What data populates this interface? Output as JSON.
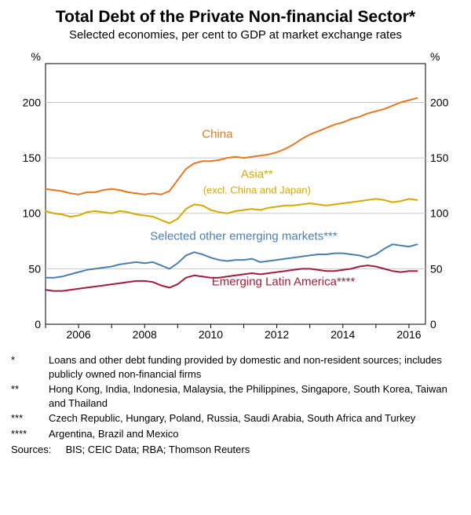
{
  "title": "Total Debt of the Private Non-financial Sector*",
  "subtitle": "Selected economies, per cent to GDP at market exchange rates",
  "chart": {
    "type": "line",
    "background_color": "#ffffff",
    "grid_color": "#c9c9c9",
    "axis_color": "#000000",
    "font_family": "Arial",
    "axis_fontsize": 14,
    "ylabel_left": "%",
    "ylabel_right": "%",
    "ylim": [
      0,
      235
    ],
    "yticks": [
      0,
      50,
      100,
      150,
      200
    ],
    "xlim": [
      2005,
      2016.5
    ],
    "xticks": [
      2006,
      2008,
      2010,
      2012,
      2014,
      2016
    ],
    "series": [
      {
        "name": "China",
        "label": "China",
        "color": "#e87722",
        "width": 2,
        "label_color": "#e87722",
        "label_x": 2010.2,
        "label_y": 168,
        "label_fontsize": 15,
        "points": [
          [
            2005.0,
            122
          ],
          [
            2005.25,
            121
          ],
          [
            2005.5,
            120
          ],
          [
            2005.75,
            118
          ],
          [
            2006.0,
            117
          ],
          [
            2006.25,
            119
          ],
          [
            2006.5,
            119
          ],
          [
            2006.75,
            121
          ],
          [
            2007.0,
            122
          ],
          [
            2007.25,
            121
          ],
          [
            2007.5,
            119
          ],
          [
            2007.75,
            118
          ],
          [
            2008.0,
            117
          ],
          [
            2008.25,
            118
          ],
          [
            2008.5,
            117
          ],
          [
            2008.75,
            120
          ],
          [
            2009.0,
            130
          ],
          [
            2009.25,
            140
          ],
          [
            2009.5,
            145
          ],
          [
            2009.75,
            147
          ],
          [
            2010.0,
            147
          ],
          [
            2010.25,
            148
          ],
          [
            2010.5,
            150
          ],
          [
            2010.75,
            151
          ],
          [
            2011.0,
            150
          ],
          [
            2011.25,
            151
          ],
          [
            2011.5,
            152
          ],
          [
            2011.75,
            153
          ],
          [
            2012.0,
            155
          ],
          [
            2012.25,
            158
          ],
          [
            2012.5,
            162
          ],
          [
            2012.75,
            167
          ],
          [
            2013.0,
            171
          ],
          [
            2013.25,
            174
          ],
          [
            2013.5,
            177
          ],
          [
            2013.75,
            180
          ],
          [
            2014.0,
            182
          ],
          [
            2014.25,
            185
          ],
          [
            2014.5,
            187
          ],
          [
            2014.75,
            190
          ],
          [
            2015.0,
            192
          ],
          [
            2015.25,
            194
          ],
          [
            2015.5,
            197
          ],
          [
            2015.75,
            200
          ],
          [
            2016.0,
            202
          ],
          [
            2016.25,
            204
          ]
        ]
      },
      {
        "name": "Asia (excl. China and Japan)",
        "label": "Asia**",
        "label2": "(excl. China and Japan)",
        "color": "#d6a900",
        "width": 2,
        "label_color": "#d6a900",
        "label_x": 2011.4,
        "label_y": 132,
        "label2_x": 2011.4,
        "label2_y": 118,
        "label_fontsize": 15,
        "label2_fontsize": 13,
        "points": [
          [
            2005.0,
            102
          ],
          [
            2005.25,
            100
          ],
          [
            2005.5,
            99
          ],
          [
            2005.75,
            97
          ],
          [
            2006.0,
            98
          ],
          [
            2006.25,
            101
          ],
          [
            2006.5,
            102
          ],
          [
            2006.75,
            101
          ],
          [
            2007.0,
            100
          ],
          [
            2007.25,
            102
          ],
          [
            2007.5,
            101
          ],
          [
            2007.75,
            99
          ],
          [
            2008.0,
            98
          ],
          [
            2008.25,
            97
          ],
          [
            2008.5,
            94
          ],
          [
            2008.75,
            91
          ],
          [
            2009.0,
            95
          ],
          [
            2009.25,
            104
          ],
          [
            2009.5,
            108
          ],
          [
            2009.75,
            107
          ],
          [
            2010.0,
            103
          ],
          [
            2010.25,
            101
          ],
          [
            2010.5,
            100
          ],
          [
            2010.75,
            102
          ],
          [
            2011.0,
            103
          ],
          [
            2011.25,
            104
          ],
          [
            2011.5,
            103
          ],
          [
            2011.75,
            105
          ],
          [
            2012.0,
            106
          ],
          [
            2012.25,
            107
          ],
          [
            2012.5,
            107
          ],
          [
            2012.75,
            108
          ],
          [
            2013.0,
            109
          ],
          [
            2013.25,
            108
          ],
          [
            2013.5,
            107
          ],
          [
            2013.75,
            108
          ],
          [
            2014.0,
            109
          ],
          [
            2014.25,
            110
          ],
          [
            2014.5,
            111
          ],
          [
            2014.75,
            112
          ],
          [
            2015.0,
            113
          ],
          [
            2015.25,
            112
          ],
          [
            2015.5,
            110
          ],
          [
            2015.75,
            111
          ],
          [
            2016.0,
            113
          ],
          [
            2016.25,
            112
          ]
        ]
      },
      {
        "name": "Selected other emerging markets",
        "label": "Selected other emerging markets***",
        "color": "#4a7fb0",
        "width": 2,
        "label_color": "#4a7fb0",
        "label_x": 2011.0,
        "label_y": 76,
        "label_fontsize": 15,
        "points": [
          [
            2005.0,
            42
          ],
          [
            2005.25,
            42
          ],
          [
            2005.5,
            43
          ],
          [
            2005.75,
            45
          ],
          [
            2006.0,
            47
          ],
          [
            2006.25,
            49
          ],
          [
            2006.5,
            50
          ],
          [
            2006.75,
            51
          ],
          [
            2007.0,
            52
          ],
          [
            2007.25,
            54
          ],
          [
            2007.5,
            55
          ],
          [
            2007.75,
            56
          ],
          [
            2008.0,
            55
          ],
          [
            2008.25,
            56
          ],
          [
            2008.5,
            53
          ],
          [
            2008.75,
            50
          ],
          [
            2009.0,
            55
          ],
          [
            2009.25,
            62
          ],
          [
            2009.5,
            65
          ],
          [
            2009.75,
            63
          ],
          [
            2010.0,
            60
          ],
          [
            2010.25,
            58
          ],
          [
            2010.5,
            57
          ],
          [
            2010.75,
            58
          ],
          [
            2011.0,
            58
          ],
          [
            2011.25,
            59
          ],
          [
            2011.5,
            56
          ],
          [
            2011.75,
            57
          ],
          [
            2012.0,
            58
          ],
          [
            2012.25,
            59
          ],
          [
            2012.5,
            60
          ],
          [
            2012.75,
            61
          ],
          [
            2013.0,
            62
          ],
          [
            2013.25,
            63
          ],
          [
            2013.5,
            63
          ],
          [
            2013.75,
            64
          ],
          [
            2014.0,
            64
          ],
          [
            2014.25,
            63
          ],
          [
            2014.5,
            62
          ],
          [
            2014.75,
            60
          ],
          [
            2015.0,
            63
          ],
          [
            2015.25,
            68
          ],
          [
            2015.5,
            72
          ],
          [
            2015.75,
            71
          ],
          [
            2016.0,
            70
          ],
          [
            2016.25,
            72
          ]
        ]
      },
      {
        "name": "Emerging Latin America",
        "label": "Emerging Latin America****",
        "color": "#a01e3c",
        "width": 2,
        "label_color": "#a01e3c",
        "label_x": 2012.2,
        "label_y": 35,
        "label_fontsize": 15,
        "points": [
          [
            2005.0,
            31
          ],
          [
            2005.25,
            30
          ],
          [
            2005.5,
            30
          ],
          [
            2005.75,
            31
          ],
          [
            2006.0,
            32
          ],
          [
            2006.25,
            33
          ],
          [
            2006.5,
            34
          ],
          [
            2006.75,
            35
          ],
          [
            2007.0,
            36
          ],
          [
            2007.25,
            37
          ],
          [
            2007.5,
            38
          ],
          [
            2007.75,
            39
          ],
          [
            2008.0,
            39
          ],
          [
            2008.25,
            38
          ],
          [
            2008.5,
            35
          ],
          [
            2008.75,
            33
          ],
          [
            2009.0,
            36
          ],
          [
            2009.25,
            42
          ],
          [
            2009.5,
            44
          ],
          [
            2009.75,
            43
          ],
          [
            2010.0,
            42
          ],
          [
            2010.25,
            42
          ],
          [
            2010.5,
            43
          ],
          [
            2010.75,
            44
          ],
          [
            2011.0,
            45
          ],
          [
            2011.25,
            46
          ],
          [
            2011.5,
            45
          ],
          [
            2011.75,
            46
          ],
          [
            2012.0,
            47
          ],
          [
            2012.25,
            48
          ],
          [
            2012.5,
            49
          ],
          [
            2012.75,
            50
          ],
          [
            2013.0,
            50
          ],
          [
            2013.25,
            49
          ],
          [
            2013.5,
            48
          ],
          [
            2013.75,
            48
          ],
          [
            2014.0,
            49
          ],
          [
            2014.25,
            50
          ],
          [
            2014.5,
            52
          ],
          [
            2014.75,
            53
          ],
          [
            2015.0,
            52
          ],
          [
            2015.25,
            50
          ],
          [
            2015.5,
            48
          ],
          [
            2015.75,
            47
          ],
          [
            2016.0,
            48
          ],
          [
            2016.25,
            48
          ]
        ]
      }
    ]
  },
  "footnotes": [
    {
      "mark": "*",
      "text": "Loans and other debt funding provided by domestic and non-resident sources; includes publicly owned non-financial firms"
    },
    {
      "mark": "**",
      "text": "Hong Kong, India, Indonesia, Malaysia, the Philippines, Singapore, South Korea, Taiwan and Thailand"
    },
    {
      "mark": "***",
      "text": "Czech Republic, Hungary, Poland, Russia, Saudi Arabia, South Africa and Turkey"
    },
    {
      "mark": "****",
      "text": "Argentina, Brazil and Mexico"
    }
  ],
  "sources_label": "Sources:",
  "sources": "BIS; CEIC Data; RBA; Thomson Reuters"
}
